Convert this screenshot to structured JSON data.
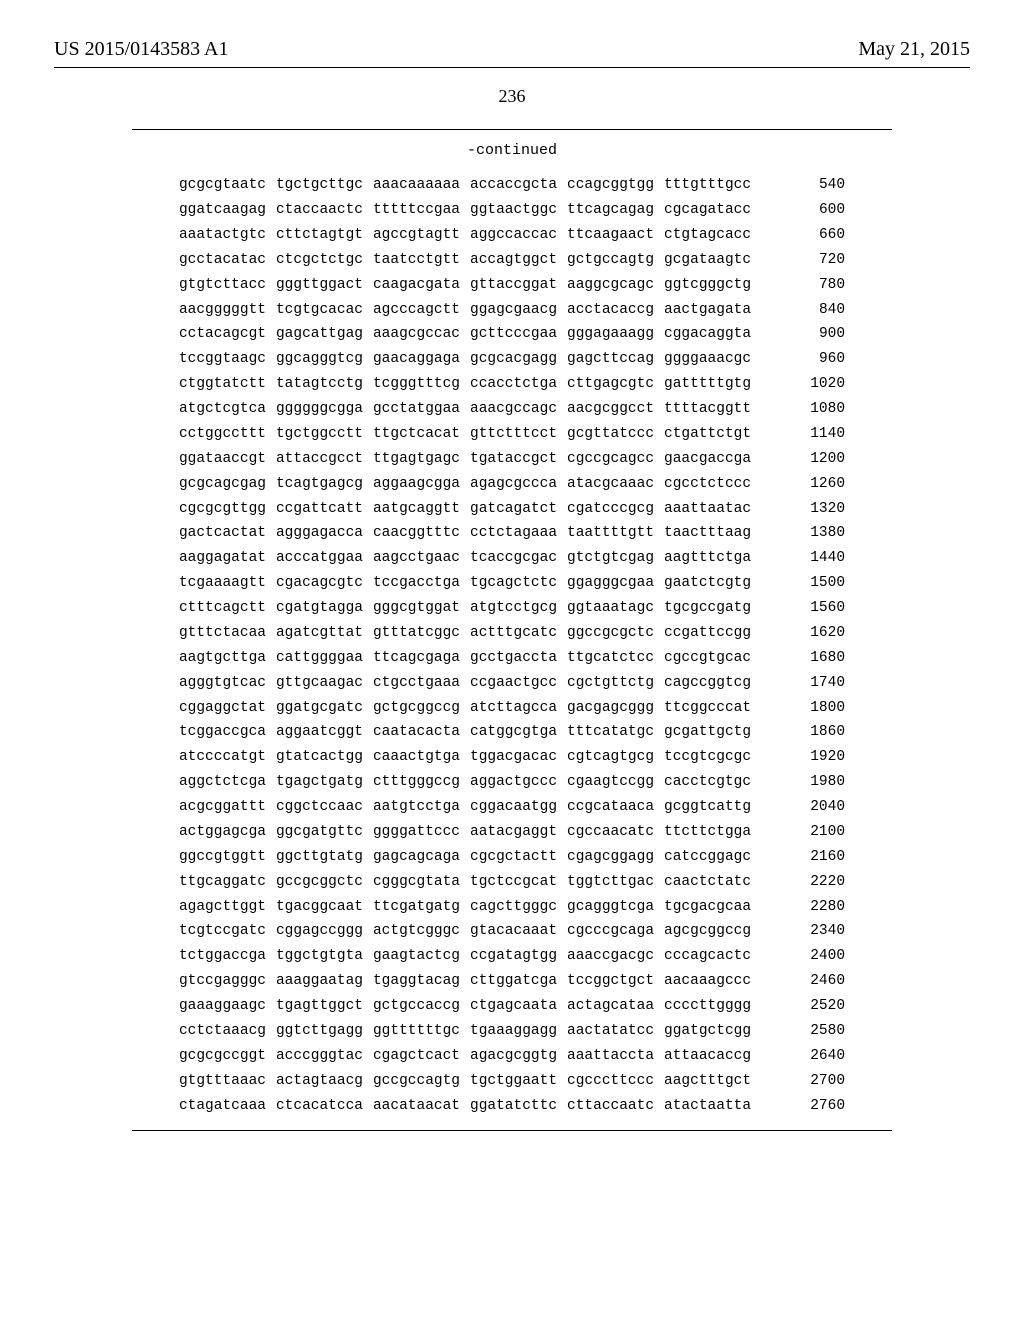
{
  "header": {
    "pubnum": "US 2015/0143583 A1",
    "pubdate": "May 21, 2015"
  },
  "pagenum": "236",
  "continued": "-continued",
  "sequence": {
    "start": 540,
    "step": 60,
    "rows": [
      [
        "gcgcgtaatc",
        "tgctgcttgc",
        "aaacaaaaaa",
        "accaccgcta",
        "ccagcggtgg",
        "tttgtttgcc"
      ],
      [
        "ggatcaagag",
        "ctaccaactc",
        "tttttccgaa",
        "ggtaactggc",
        "ttcagcagag",
        "cgcagatacc"
      ],
      [
        "aaatactgtc",
        "cttctagtgt",
        "agccgtagtt",
        "aggccaccac",
        "ttcaagaact",
        "ctgtagcacc"
      ],
      [
        "gcctacatac",
        "ctcgctctgc",
        "taatcctgtt",
        "accagtggct",
        "gctgccagtg",
        "gcgataagtc"
      ],
      [
        "gtgtcttacc",
        "gggttggact",
        "caagacgata",
        "gttaccggat",
        "aaggcgcagc",
        "ggtcgggctg"
      ],
      [
        "aacgggggtt",
        "tcgtgcacac",
        "agcccagctt",
        "ggagcgaacg",
        "acctacaccg",
        "aactgagata"
      ],
      [
        "cctacagcgt",
        "gagcattgag",
        "aaagcgccac",
        "gcttcccgaa",
        "gggagaaagg",
        "cggacaggta"
      ],
      [
        "tccggtaagc",
        "ggcagggtcg",
        "gaacaggaga",
        "gcgcacgagg",
        "gagcttccag",
        "ggggaaacgc"
      ],
      [
        "ctggtatctt",
        "tatagtcctg",
        "tcgggtttcg",
        "ccacctctga",
        "cttgagcgtc",
        "gatttttgtg"
      ],
      [
        "atgctcgtca",
        "ggggggcgga",
        "gcctatggaa",
        "aaacgccagc",
        "aacgcggcct",
        "ttttacggtt"
      ],
      [
        "cctggccttt",
        "tgctggcctt",
        "ttgctcacat",
        "gttctttcct",
        "gcgttatccc",
        "ctgattctgt"
      ],
      [
        "ggataaccgt",
        "attaccgcct",
        "ttgagtgagc",
        "tgataccgct",
        "cgccgcagcc",
        "gaacgaccga"
      ],
      [
        "gcgcagcgag",
        "tcagtgagcg",
        "aggaagcgga",
        "agagcgccca",
        "atacgcaaac",
        "cgcctctccc"
      ],
      [
        "cgcgcgttgg",
        "ccgattcatt",
        "aatgcaggtt",
        "gatcagatct",
        "cgatcccgcg",
        "aaattaatac"
      ],
      [
        "gactcactat",
        "agggagacca",
        "caacggtttc",
        "cctctagaaa",
        "taattttgtt",
        "taactttaag"
      ],
      [
        "aaggagatat",
        "acccatggaa",
        "aagcctgaac",
        "tcaccgcgac",
        "gtctgtcgag",
        "aagtttctga"
      ],
      [
        "tcgaaaagtt",
        "cgacagcgtc",
        "tccgacctga",
        "tgcagctctc",
        "ggagggcgaa",
        "gaatctcgtg"
      ],
      [
        "ctttcagctt",
        "cgatgtagga",
        "gggcgtggat",
        "atgtcctgcg",
        "ggtaaatagc",
        "tgcgccgatg"
      ],
      [
        "gtttctacaa",
        "agatcgttat",
        "gtttatcggc",
        "actttgcatc",
        "ggccgcgctc",
        "ccgattccgg"
      ],
      [
        "aagtgcttga",
        "cattggggaa",
        "ttcagcgaga",
        "gcctgaccta",
        "ttgcatctcc",
        "cgccgtgcac"
      ],
      [
        "agggtgtcac",
        "gttgcaagac",
        "ctgcctgaaa",
        "ccgaactgcc",
        "cgctgttctg",
        "cagccggtcg"
      ],
      [
        "cggaggctat",
        "ggatgcgatc",
        "gctgcggccg",
        "atcttagcca",
        "gacgagcggg",
        "ttcggcccat"
      ],
      [
        "tcggaccgca",
        "aggaatcggt",
        "caatacacta",
        "catggcgtga",
        "tttcatatgc",
        "gcgattgctg"
      ],
      [
        "atccccatgt",
        "gtatcactgg",
        "caaactgtga",
        "tggacgacac",
        "cgtcagtgcg",
        "tccgtcgcgc"
      ],
      [
        "aggctctcga",
        "tgagctgatg",
        "ctttgggccg",
        "aggactgccc",
        "cgaagtccgg",
        "cacctcgtgc"
      ],
      [
        "acgcggattt",
        "cggctccaac",
        "aatgtcctga",
        "cggacaatgg",
        "ccgcataaca",
        "gcggtcattg"
      ],
      [
        "actggagcga",
        "ggcgatgttc",
        "ggggattccc",
        "aatacgaggt",
        "cgccaacatc",
        "ttcttctgga"
      ],
      [
        "ggccgtggtt",
        "ggcttgtatg",
        "gagcagcaga",
        "cgcgctactt",
        "cgagcggagg",
        "catccggagc"
      ],
      [
        "ttgcaggatc",
        "gccgcggctc",
        "cgggcgtata",
        "tgctccgcat",
        "tggtcttgac",
        "caactctatc"
      ],
      [
        "agagcttggt",
        "tgacggcaat",
        "ttcgatgatg",
        "cagcttgggc",
        "gcagggtcga",
        "tgcgacgcaa"
      ],
      [
        "tcgtccgatc",
        "cggagccggg",
        "actgtcgggc",
        "gtacacaaat",
        "cgcccgcaga",
        "agcgcggccg"
      ],
      [
        "tctggaccga",
        "tggctgtgta",
        "gaagtactcg",
        "ccgatagtgg",
        "aaaccgacgc",
        "cccagcactc"
      ],
      [
        "gtccgagggc",
        "aaaggaatag",
        "tgaggtacag",
        "cttggatcga",
        "tccggctgct",
        "aacaaagccc"
      ],
      [
        "gaaaggaagc",
        "tgagttggct",
        "gctgccaccg",
        "ctgagcaata",
        "actagcataa",
        "ccccttgggg"
      ],
      [
        "cctctaaacg",
        "ggtcttgagg",
        "ggttttttgc",
        "tgaaaggagg",
        "aactatatcc",
        "ggatgctcgg"
      ],
      [
        "gcgcgccggt",
        "acccgggtac",
        "cgagctcact",
        "agacgcggtg",
        "aaattaccta",
        "attaacaccg"
      ],
      [
        "gtgtttaaac",
        "actagtaacg",
        "gccgccagtg",
        "tgctggaatt",
        "cgcccttccc",
        "aagctttgct"
      ],
      [
        "ctagatcaaa",
        "ctcacatcca",
        "aacataacat",
        "ggatatcttc",
        "cttaccaatc",
        "atactaatta"
      ]
    ]
  }
}
